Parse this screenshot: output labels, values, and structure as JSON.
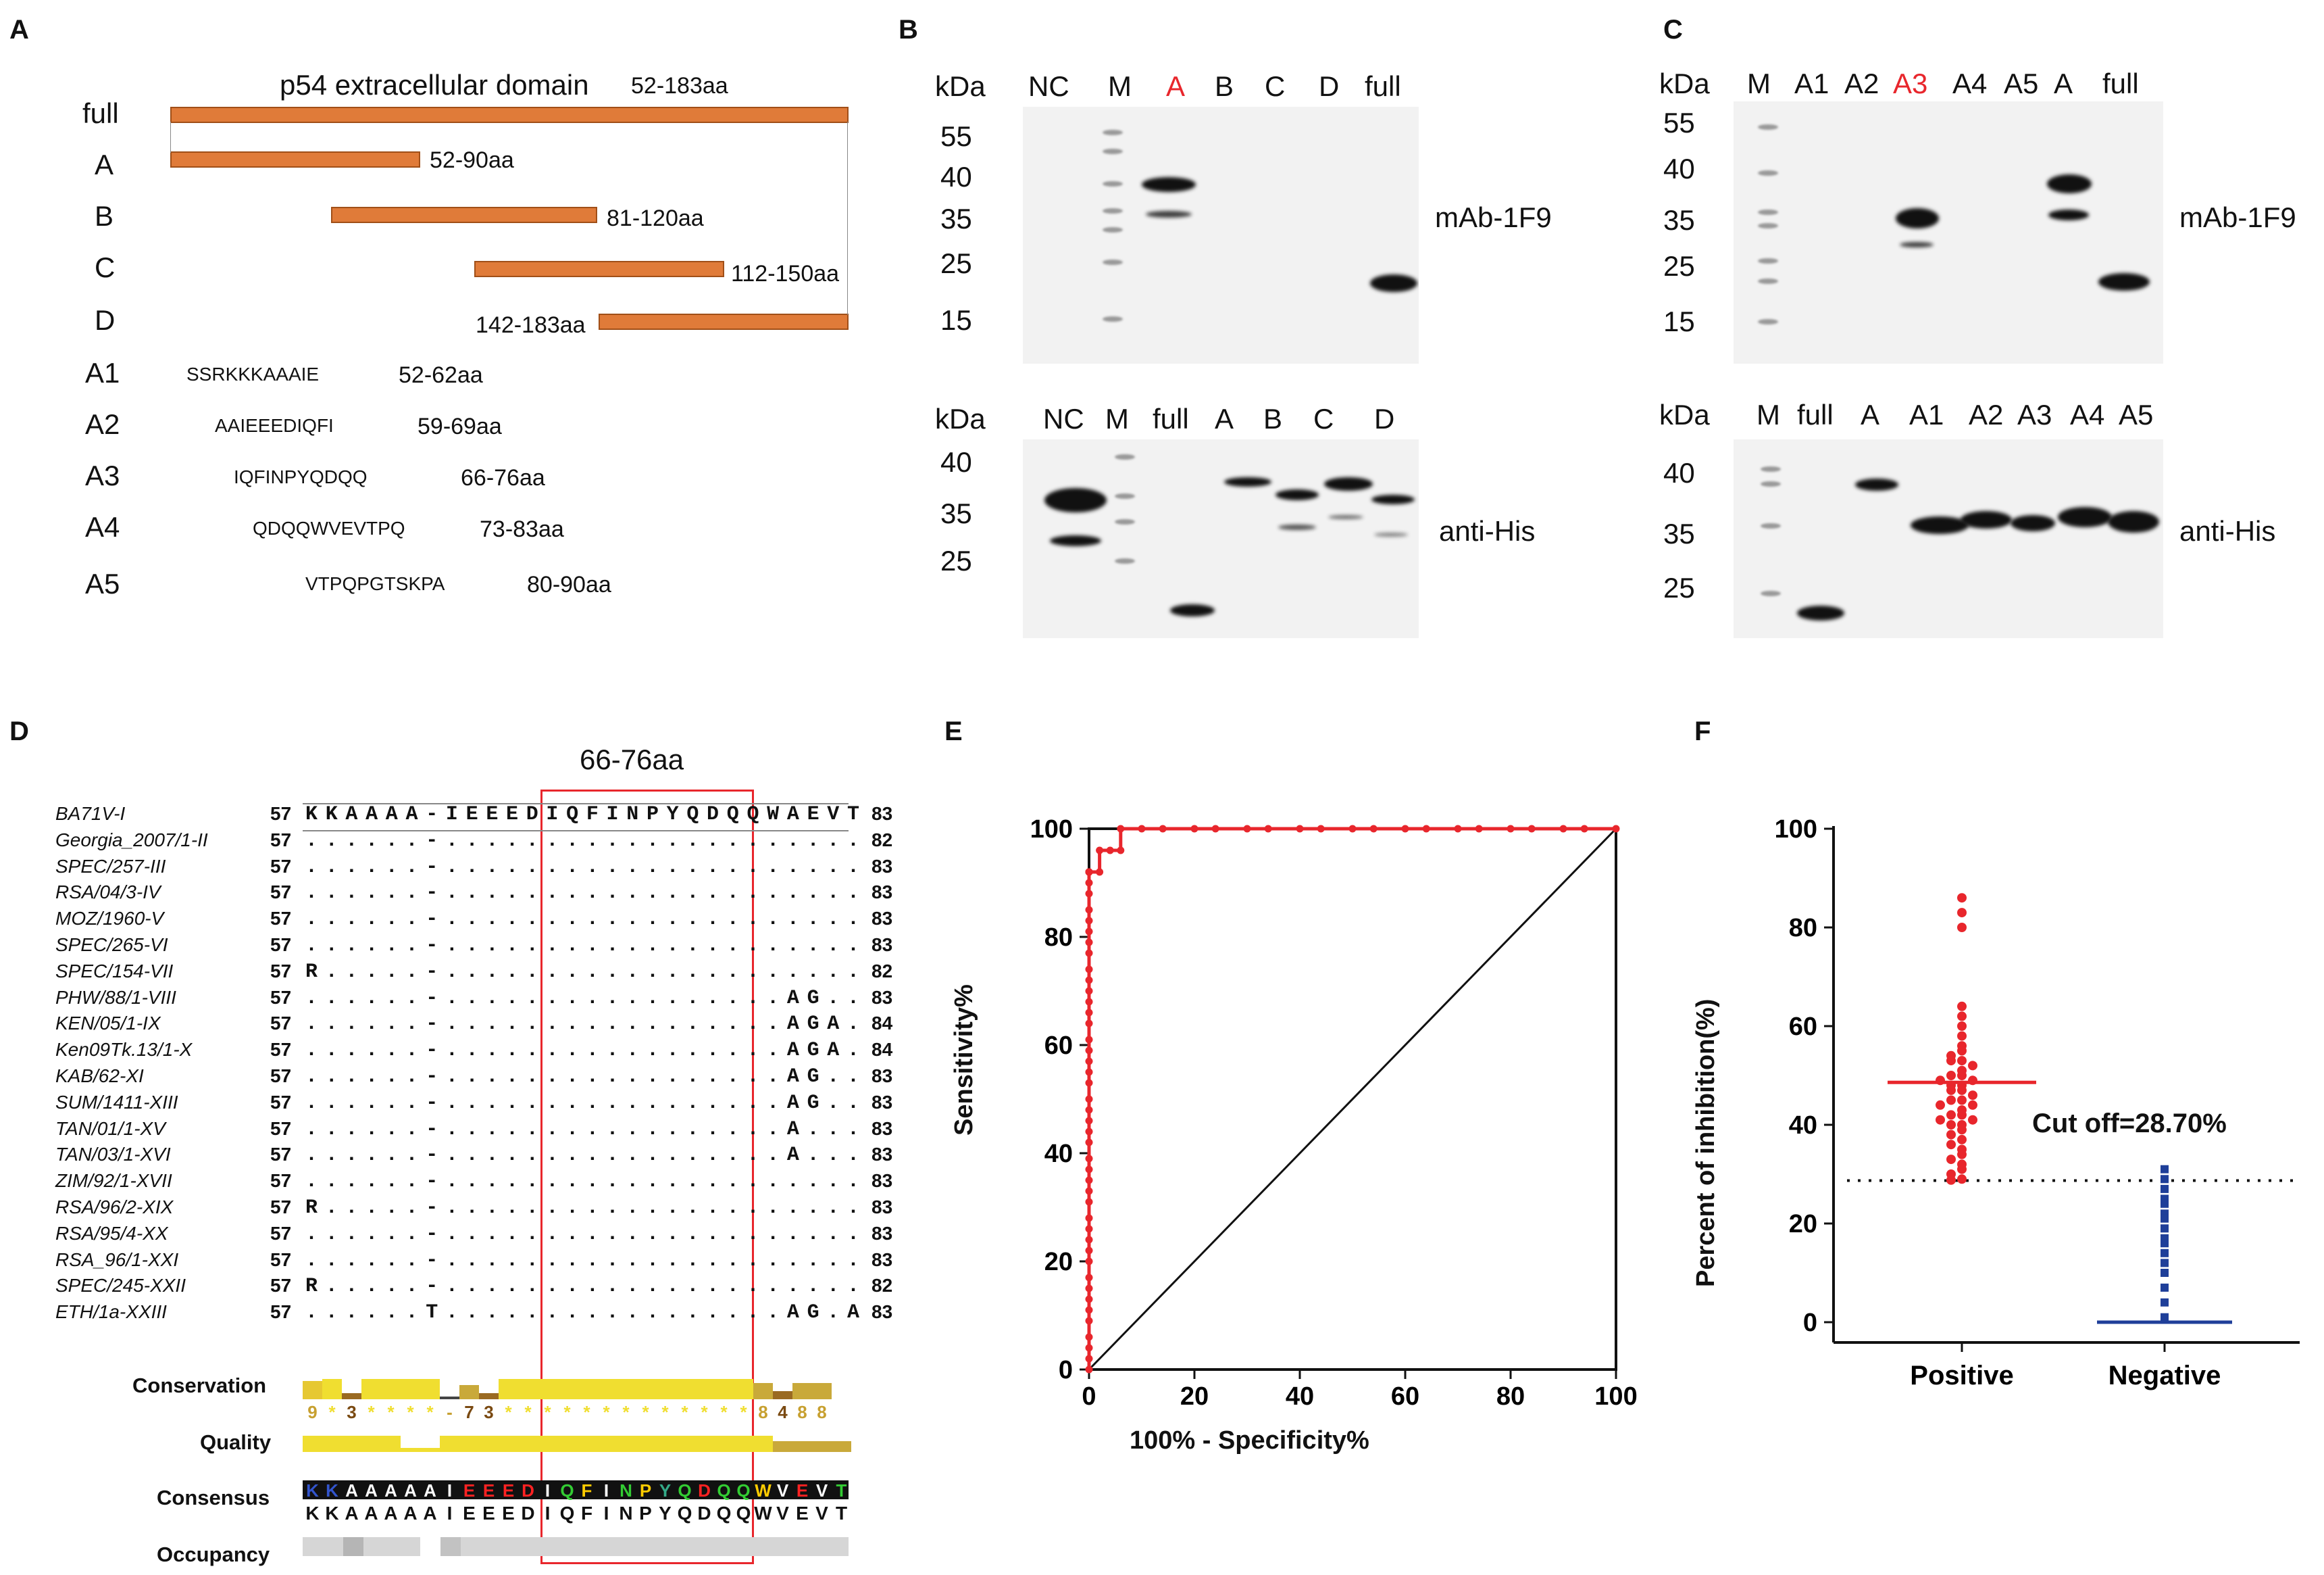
{
  "panels": {
    "A": "A",
    "B": "B",
    "C": "C",
    "D": "D",
    "E": "E",
    "F": "F"
  },
  "panel_a": {
    "title": "p54 extracellular domain",
    "title_range": "52-183aa",
    "rows": [
      {
        "label": "full",
        "range": ""
      },
      {
        "label": "A",
        "range": "52-90aa"
      },
      {
        "label": "B",
        "range": "81-120aa"
      },
      {
        "label": "C",
        "range": "112-150aa"
      },
      {
        "label": "D",
        "range": "142-183aa"
      }
    ],
    "peptides": [
      {
        "label": "A1",
        "seq": "SSRKKKAAAIE",
        "range": "52-62aa"
      },
      {
        "label": "A2",
        "seq": "AAIEEEDIQFI",
        "range": "59-69aa"
      },
      {
        "label": "A3",
        "seq": "IQFINPYQDQQ",
        "range": "66-76aa"
      },
      {
        "label": "A4",
        "seq": "QDQQWVEVTPQ",
        "range": "73-83aa"
      },
      {
        "label": "A5",
        "seq": "VTPQPGTSKPA",
        "range": "80-90aa"
      }
    ],
    "bar_color": "#e07b39"
  },
  "panel_b": {
    "kda": "kDa",
    "top_lanes": [
      "NC",
      "M",
      "A",
      "B",
      "C",
      "D",
      "full"
    ],
    "top_highlight": "A",
    "top_mw": [
      "55",
      "40",
      "35",
      "25",
      "15"
    ],
    "top_antibody": "mAb-1F9",
    "bottom_lanes": [
      "NC",
      "M",
      "full",
      "A",
      "B",
      "C",
      "D"
    ],
    "bottom_mw": [
      "40",
      "35",
      "25"
    ],
    "bottom_antibody": "anti-His"
  },
  "panel_c": {
    "kda": "kDa",
    "top_lanes": [
      "M",
      "A1",
      "A2",
      "A3",
      "A4",
      "A5",
      "A",
      "full"
    ],
    "top_highlight": "A3",
    "top_mw": [
      "55",
      "40",
      "35",
      "25",
      "15"
    ],
    "top_antibody": "mAb-1F9",
    "bottom_lanes": [
      "M",
      "full",
      "A",
      "A1",
      "A2",
      "A3",
      "A4",
      "A5"
    ],
    "bottom_mw": [
      "40",
      "35",
      "25"
    ],
    "bottom_antibody": "anti-His"
  },
  "panel_d": {
    "highlight_label": "66-76aa",
    "reference_seq": "KKAAAA-IEEEDIQFINPYQDQQWAEVT",
    "strains": [
      {
        "name": "BA71V-I",
        "start": "57",
        "suffix": "",
        "end": "83"
      },
      {
        "name": "Georgia_2007/1-II",
        "start": "57",
        "suffix": "",
        "end": "82"
      },
      {
        "name": "SPEC/257-III",
        "start": "57",
        "suffix": "",
        "end": "83"
      },
      {
        "name": "RSA/04/3-IV",
        "start": "57",
        "suffix": "",
        "end": "83"
      },
      {
        "name": "MOZ/1960-V",
        "start": "57",
        "suffix": "",
        "end": "83"
      },
      {
        "name": "SPEC/265-VI",
        "start": "57",
        "suffix": "",
        "end": "83"
      },
      {
        "name": "SPEC/154-VII",
        "start": "57",
        "suffix": "",
        "end": "82"
      },
      {
        "name": "PHW/88/1-VIII",
        "start": "57",
        "suffix": "AG.",
        "end": "83"
      },
      {
        "name": "KEN/05/1-IX",
        "start": "57",
        "suffix": "AGA.",
        "end": "84"
      },
      {
        "name": "Ken09Tk.13/1-X",
        "start": "57",
        "suffix": "AGA.",
        "end": "84"
      },
      {
        "name": "KAB/62-XI",
        "start": "57",
        "suffix": "AG.",
        "end": "83"
      },
      {
        "name": "SUM/1411-XIII",
        "start": "57",
        "suffix": "AG.",
        "end": "83"
      },
      {
        "name": "TAN/01/1-XV",
        "start": "57",
        "suffix": "A.",
        "end": "83"
      },
      {
        "name": "TAN/03/1-XVI",
        "start": "57",
        "suffix": "A.",
        "end": "83"
      },
      {
        "name": "ZIM/92/1-XVII",
        "start": "57",
        "suffix": "",
        "end": "83"
      },
      {
        "name": "RSA/96/2-XIX",
        "start": "57",
        "suffix": "",
        "end": "83"
      },
      {
        "name": "RSA/95/4-XX",
        "start": "57",
        "suffix": "",
        "end": "83"
      },
      {
        "name": "RSA_96/1-XXI",
        "start": "57",
        "suffix": "",
        "end": "83"
      },
      {
        "name": "SPEC/245-XXII",
        "start": "57",
        "suffix": "",
        "end": "82"
      },
      {
        "name": "ETH/1a-XXIII",
        "start": "57",
        "suffix": "AG.A",
        "end": "83"
      }
    ],
    "track_labels": {
      "conservation": "Conservation",
      "quality": "Quality",
      "consensus": "Consensus",
      "occupancy": "Occupancy"
    },
    "conservation_scores": "9*3****-73*************8488",
    "consensus_seq": "KKAAAAAIEEEDIQFINPYQDQQWVEVT"
  },
  "chart_data": [
    {
      "type": "line",
      "panel": "E",
      "title": "",
      "xlabel": "100% - Specificity%",
      "ylabel": "Sensitivity%",
      "xlim": [
        0,
        100
      ],
      "ylim": [
        0,
        100
      ],
      "xticks": [
        "0",
        "20",
        "40",
        "60",
        "80",
        "100"
      ],
      "yticks": [
        "0",
        "20",
        "40",
        "60",
        "80",
        "100"
      ],
      "series": [
        {
          "name": "ROC",
          "color": "#e8262c",
          "x": [
            0,
            0,
            0,
            0,
            0,
            0,
            0,
            0,
            0,
            0,
            0,
            0,
            0,
            0,
            0,
            0,
            0,
            0,
            0,
            0,
            0,
            0,
            0,
            0,
            0,
            0,
            0,
            0,
            0,
            0,
            0,
            0,
            0,
            0,
            0,
            0,
            0,
            0,
            0,
            0,
            0,
            0,
            0,
            0,
            0,
            0,
            0,
            2,
            2,
            4,
            6,
            6,
            10,
            14,
            20,
            24,
            30,
            34,
            40,
            44,
            50,
            54,
            60,
            64,
            70,
            74,
            80,
            84,
            90,
            94,
            100
          ],
          "y": [
            0,
            2,
            4,
            6,
            9,
            11,
            13,
            15,
            17,
            20,
            22,
            24,
            26,
            28,
            31,
            33,
            35,
            37,
            39,
            42,
            44,
            46,
            48,
            50,
            53,
            55,
            57,
            59,
            61,
            64,
            66,
            68,
            70,
            72,
            74,
            77,
            79,
            81,
            83,
            85,
            88,
            90,
            92,
            92,
            92,
            92,
            92,
            92,
            96,
            96,
            96,
            100,
            100,
            100,
            100,
            100,
            100,
            100,
            100,
            100,
            100,
            100,
            100,
            100,
            100,
            100,
            100,
            100,
            100,
            100,
            100
          ]
        }
      ]
    },
    {
      "type": "scatter",
      "panel": "F",
      "title": "",
      "xlabel": "",
      "ylabel": "Percent of inhibition(%)",
      "categories": [
        "Positive",
        "Negative"
      ],
      "ylim": [
        0,
        100
      ],
      "yticks": [
        "0",
        "20",
        "40",
        "60",
        "80",
        "100"
      ],
      "cutoff": 28.7,
      "cutoff_label": "Cut off=28.70%",
      "series": [
        {
          "name": "Positive",
          "color": "#e8262c",
          "mean": 48.6,
          "values": [
            86,
            83,
            80,
            64,
            62,
            60,
            58,
            56,
            55,
            54,
            53,
            53,
            52,
            51,
            50,
            50,
            49,
            49,
            48,
            48,
            47,
            47,
            46,
            45,
            45,
            44,
            44,
            43,
            42,
            42,
            41,
            41,
            40,
            40,
            39,
            38,
            37,
            36,
            35,
            34,
            33,
            32,
            31,
            30,
            29,
            28.8
          ]
        },
        {
          "name": "Negative",
          "color": "#1f3f99",
          "mean": 0,
          "values": [
            31,
            29,
            27,
            25,
            24,
            22,
            21,
            19,
            17,
            16,
            14,
            12,
            10,
            7,
            4,
            1,
            0.5
          ]
        }
      ]
    }
  ]
}
